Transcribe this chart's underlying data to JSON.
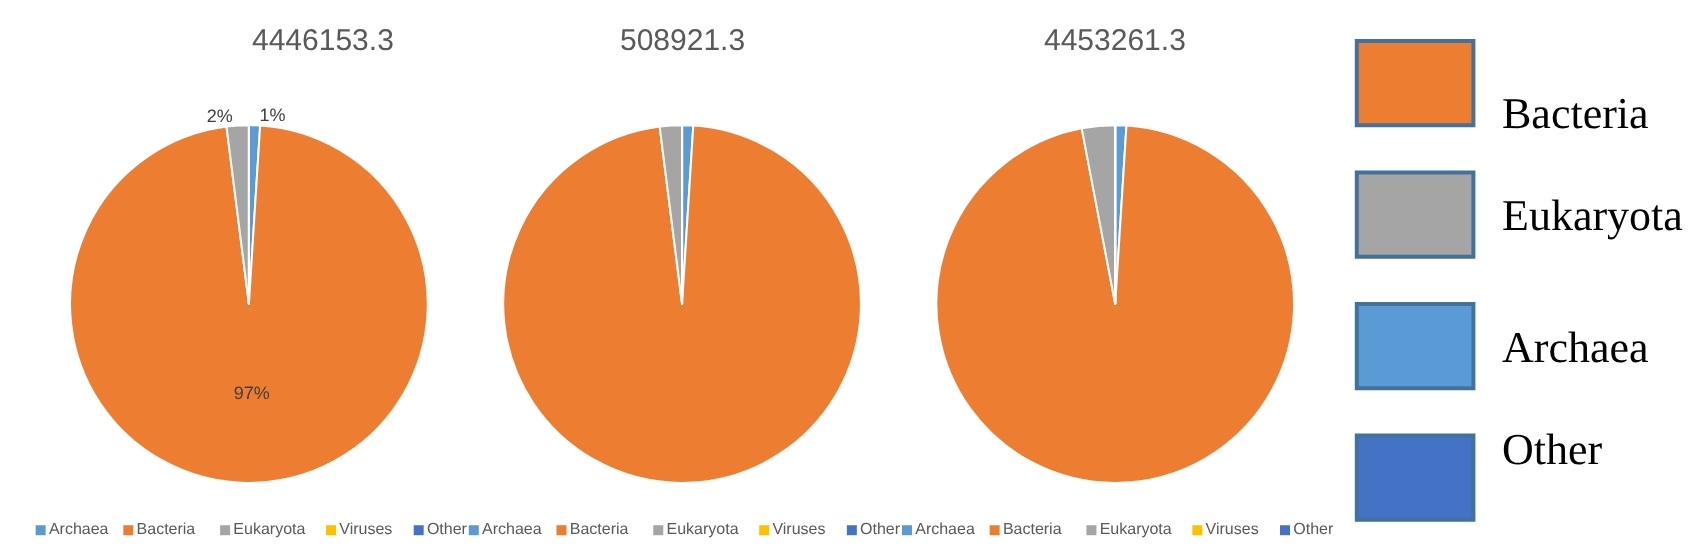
{
  "chart_data": [
    {
      "type": "pie",
      "title": "4446153.3",
      "categories": [
        "Archaea",
        "Bacteria",
        "Eukaryota",
        "Viruses",
        "Other"
      ],
      "values": [
        1,
        97,
        2,
        0,
        0
      ],
      "colors": [
        "#5b9bd5",
        "#ed7d31",
        "#a5a5a5",
        "#ffc000",
        "#4472c4"
      ],
      "value_labels": [
        "1%",
        "97%",
        "2%",
        null,
        null
      ],
      "legend": "bottom"
    },
    {
      "type": "pie",
      "title": "508921.3",
      "categories": [
        "Archaea",
        "Bacteria",
        "Eukaryota",
        "Viruses",
        "Other"
      ],
      "values": [
        1,
        97,
        2,
        0,
        0
      ],
      "colors": [
        "#5b9bd5",
        "#ed7d31",
        "#a5a5a5",
        "#ffc000",
        "#4472c4"
      ],
      "legend": "bottom"
    },
    {
      "type": "pie",
      "title": "4453261.3",
      "categories": [
        "Archaea",
        "Bacteria",
        "Eukaryota",
        "Viruses",
        "Other"
      ],
      "values": [
        1,
        96,
        3,
        0,
        0
      ],
      "colors": [
        "#5b9bd5",
        "#ed7d31",
        "#a5a5a5",
        "#ffc000",
        "#4472c4"
      ],
      "legend": "bottom"
    },
    {
      "type": "other",
      "categories": [
        "Bacteria",
        "Eukaryota",
        "Archaea",
        "Other"
      ],
      "colors": [
        "#ed7d31",
        "#a5a5a5",
        "#5b9bd5",
        "#4472c4"
      ]
    }
  ]
}
